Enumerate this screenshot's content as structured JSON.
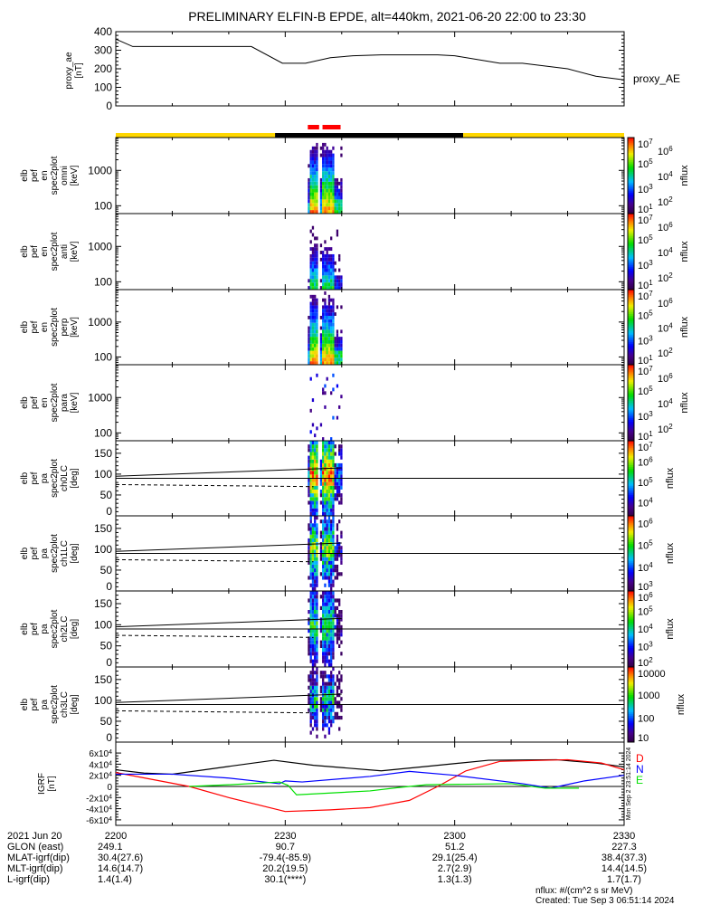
{
  "title": "PRELIMINARY ELFIN-B EPDE, alt=440km, 2021-06-20 22:00 to 23:30",
  "chart_data": [
    {
      "type": "line",
      "name": "proxy_ae",
      "ylabel": [
        "proxy_ae",
        "[nT]"
      ],
      "legend": "proxy_AE",
      "ylim": [
        0,
        400
      ],
      "yticks": [
        "0",
        "100",
        "200",
        "300",
        "400"
      ],
      "ytick_values": [
        0,
        100,
        200,
        300,
        400
      ],
      "x_minutes": [
        0,
        3,
        24,
        29.5,
        33.6,
        38,
        42,
        47,
        57,
        60,
        64,
        68,
        72,
        80,
        85,
        90
      ],
      "values": [
        360,
        320,
        320,
        230,
        230,
        260,
        270,
        275,
        275,
        270,
        250,
        230,
        230,
        200,
        160,
        140
      ]
    },
    {
      "type": "bar",
      "name": "status-bars",
      "red_segments_minutes": [
        [
          34.0,
          36.0
        ],
        [
          36.6,
          39.8
        ]
      ],
      "shadow_segments": [
        {
          "from": 0,
          "to": 28.2,
          "color": "#ffd700"
        },
        {
          "from": 28.2,
          "to": 61.5,
          "color": "#000000"
        },
        {
          "from": 61.5,
          "to": 90,
          "color": "#ffd700"
        }
      ]
    },
    {
      "type": "heatmap",
      "panels": [
        {
          "ylabel": [
            "elb",
            "pef",
            "en",
            "spec2plot",
            "omni",
            "[keV]"
          ],
          "yscale": "log",
          "ylim": [
            60,
            8500
          ],
          "yticks": [
            "100",
            "1000"
          ],
          "ytick_values": [
            100,
            1000
          ],
          "zlabel": "nflux",
          "zlim_log": [
            1,
            7
          ],
          "zticks": [
            {
              "b": "10",
              "e": "7"
            },
            {
              "b": "10",
              "e": "6"
            },
            {
              "b": "10",
              "e": "5"
            },
            {
              "b": "10",
              "e": "4"
            },
            {
              "b": "10",
              "e": "3"
            },
            {
              "b": "10",
              "e": "2"
            },
            {
              "b": "10",
              "e": "1"
            }
          ],
          "ztick_values": [
            7,
            6,
            5,
            4,
            3,
            2,
            1
          ],
          "kind": "energy",
          "strength": 6.2
        },
        {
          "ylabel": [
            "elb",
            "pef",
            "en",
            "spec2plot",
            "anti",
            "[keV]"
          ],
          "yscale": "log",
          "ylim": [
            60,
            8500
          ],
          "yticks": [
            "100",
            "1000"
          ],
          "ytick_values": [
            100,
            1000
          ],
          "zlabel": "nflux",
          "zlim_log": [
            1,
            7
          ],
          "zticks": [
            {
              "b": "10",
              "e": "7"
            },
            {
              "b": "10",
              "e": "6"
            },
            {
              "b": "10",
              "e": "5"
            },
            {
              "b": "10",
              "e": "4"
            },
            {
              "b": "10",
              "e": "3"
            },
            {
              "b": "10",
              "e": "2"
            },
            {
              "b": "10",
              "e": "1"
            }
          ],
          "ztick_values": [
            7,
            6,
            5,
            4,
            3,
            2,
            1
          ],
          "kind": "energy",
          "strength": 4.3
        },
        {
          "ylabel": [
            "elb",
            "pef",
            "en",
            "spec2plot",
            "perp",
            "[keV]"
          ],
          "yscale": "log",
          "ylim": [
            60,
            8500
          ],
          "yticks": [
            "100",
            "1000"
          ],
          "ytick_values": [
            100,
            1000
          ],
          "zlabel": "nflux",
          "zlim_log": [
            1,
            7
          ],
          "zticks": [
            {
              "b": "10",
              "e": "7"
            },
            {
              "b": "10",
              "e": "6"
            },
            {
              "b": "10",
              "e": "5"
            },
            {
              "b": "10",
              "e": "4"
            },
            {
              "b": "10",
              "e": "3"
            },
            {
              "b": "10",
              "e": "2"
            },
            {
              "b": "10",
              "e": "1"
            }
          ],
          "ztick_values": [
            7,
            6,
            5,
            4,
            3,
            2,
            1
          ],
          "kind": "energy",
          "strength": 6.2
        },
        {
          "ylabel": [
            "elb",
            "pef",
            "en",
            "spec2plot",
            "para",
            "[keV]"
          ],
          "yscale": "log",
          "ylim": [
            60,
            8500
          ],
          "yticks": [
            "100",
            "1000"
          ],
          "ytick_values": [
            100,
            1000
          ],
          "zlabel": "nflux",
          "zlim_log": [
            1,
            7
          ],
          "zticks": [
            {
              "b": "10",
              "e": "7"
            },
            {
              "b": "10",
              "e": "6"
            },
            {
              "b": "10",
              "e": "5"
            },
            {
              "b": "10",
              "e": "4"
            },
            {
              "b": "10",
              "e": "3"
            },
            {
              "b": "10",
              "e": "2"
            },
            {
              "b": "10",
              "e": "1"
            }
          ],
          "ztick_values": [
            7,
            6,
            5,
            4,
            3,
            2,
            1
          ],
          "kind": "energy",
          "strength": 0.5
        },
        {
          "ylabel": [
            "elb",
            "pef",
            "pa",
            "spec2plot",
            "ch0LC",
            "[deg]"
          ],
          "yscale": "linear",
          "ylim": [
            0,
            180
          ],
          "yticks": [
            "0",
            "50",
            "100",
            "150"
          ],
          "ytick_values": [
            0,
            50,
            100,
            150
          ],
          "zlabel": "nflux",
          "zlim_log": [
            3.3,
            7
          ],
          "zticks": [
            {
              "b": "10",
              "e": "7"
            },
            {
              "b": "10",
              "e": "6"
            },
            {
              "b": "10",
              "e": "5"
            },
            {
              "b": "10",
              "e": "4"
            }
          ],
          "ztick_values": [
            7,
            6,
            5,
            4
          ],
          "kind": "pa",
          "strength": 6.5
        },
        {
          "ylabel": [
            "elb",
            "pef",
            "pa",
            "spec2plot",
            "ch1LC",
            "[deg]"
          ],
          "yscale": "linear",
          "ylim": [
            0,
            180
          ],
          "yticks": [
            "0",
            "50",
            "100",
            "150"
          ],
          "ytick_values": [
            0,
            50,
            100,
            150
          ],
          "zlabel": "nflux",
          "zlim_log": [
            2.9,
            6.3
          ],
          "zticks": [
            {
              "b": "10",
              "e": "6"
            },
            {
              "b": "10",
              "e": "5"
            },
            {
              "b": "10",
              "e": "4"
            },
            {
              "b": "10",
              "e": "3"
            }
          ],
          "ztick_values": [
            6,
            5,
            4,
            3
          ],
          "kind": "pa",
          "strength": 5.2
        },
        {
          "ylabel": [
            "elb",
            "pef",
            "pa",
            "spec2plot",
            "ch2LC",
            "[deg]"
          ],
          "yscale": "linear",
          "ylim": [
            0,
            180
          ],
          "yticks": [
            "0",
            "50",
            "100",
            "150"
          ],
          "ytick_values": [
            0,
            50,
            100,
            150
          ],
          "zlabel": "nflux",
          "zlim_log": [
            1.8,
            6.1
          ],
          "zticks": [
            {
              "b": "10",
              "e": "6"
            },
            {
              "b": "10",
              "e": "5"
            },
            {
              "b": "10",
              "e": "4"
            },
            {
              "b": "10",
              "e": "3"
            },
            {
              "b": "10",
              "e": "2"
            }
          ],
          "ztick_values": [
            6,
            5,
            4,
            3,
            2
          ],
          "kind": "pa",
          "strength": 4.3
        },
        {
          "ylabel": [
            "elb",
            "pef",
            "pa",
            "spec2plot",
            "ch3LC",
            "[deg]"
          ],
          "yscale": "linear",
          "ylim": [
            0,
            180
          ],
          "yticks": [
            "0",
            "50",
            "100",
            "150"
          ],
          "ytick_values": [
            0,
            50,
            100,
            150
          ],
          "zlabel": "nflux",
          "zlim_log": [
            0.9,
            4.2
          ],
          "zticks": [
            {
              "b": "",
              "e": "",
              "t": "10000"
            },
            {
              "b": "",
              "e": "",
              "t": "1000"
            },
            {
              "b": "",
              "e": "",
              "t": "100"
            },
            {
              "b": "",
              "e": "",
              "t": "10"
            }
          ],
          "ztick_values": [
            4,
            3,
            2,
            1
          ],
          "kind": "pa",
          "strength": 2.6
        }
      ],
      "active_interval_minutes": [
        34.0,
        40.0
      ],
      "gap_minute": 35.9,
      "pa_lines": {
        "solid_minutes": [
          0,
          40
        ],
        "solid_deg": [
          95,
          115
        ],
        "dashed_minutes": [
          0,
          35
        ],
        "dashed_deg": [
          75,
          70
        ],
        "reference_deg": 90
      }
    },
    {
      "type": "line",
      "name": "IGRF",
      "ylabel": [
        "IGRF",
        "[nT]"
      ],
      "ylim": [
        -65000,
        65000
      ],
      "yticks": [
        {
          "b": "6x10",
          "e": "4",
          "v": 60000
        },
        {
          "b": "4x10",
          "e": "4",
          "v": 40000
        },
        {
          "b": "2x10",
          "e": "4",
          "v": 20000
        },
        {
          "b": "0",
          "e": "",
          "v": 0
        },
        {
          "b": "-2x10",
          "e": "4",
          "v": -20000
        },
        {
          "b": "-4x10",
          "e": "4",
          "v": -40000
        },
        {
          "b": "-6x10",
          "e": "4",
          "v": -60000
        }
      ],
      "legend": [
        {
          "label": "D",
          "color": "#ff0000"
        },
        {
          "label": "N",
          "color": "#0000ff"
        },
        {
          "label": "E",
          "color": "#00e000"
        }
      ],
      "side_note": "Mon Sep  2 23:51:14 2024",
      "series": [
        {
          "name": "total",
          "color": "#000000",
          "x": [
            0,
            5,
            10,
            20,
            28,
            35,
            47,
            55,
            66,
            78,
            85,
            90
          ],
          "values": [
            30000,
            24000,
            22000,
            36000,
            47000,
            38000,
            28000,
            36000,
            47000,
            48000,
            42000,
            35000
          ]
        },
        {
          "name": "D",
          "color": "#ff0000",
          "x": [
            0,
            13,
            20,
            30,
            38,
            45,
            52,
            57,
            62,
            68,
            80,
            86,
            90
          ],
          "values": [
            25000,
            0,
            -20000,
            -45000,
            -42000,
            -38000,
            -25000,
            0,
            28000,
            45000,
            48000,
            42000,
            30000
          ]
        },
        {
          "name": "N",
          "color": "#0000ff",
          "x": [
            0,
            10,
            20,
            29,
            30,
            33,
            45,
            52,
            60,
            72,
            77,
            83,
            90
          ],
          "values": [
            22000,
            22000,
            15000,
            5000,
            10000,
            8000,
            18000,
            27000,
            20000,
            5000,
            -3000,
            10000,
            20000
          ]
        },
        {
          "name": "E",
          "color": "#00e000",
          "x": [
            13,
            20,
            29,
            30.5,
            32,
            45,
            50,
            55,
            70,
            76,
            82
          ],
          "values": [
            0,
            3000,
            8000,
            2000,
            -15000,
            -8000,
            -2000,
            3000,
            5000,
            -3000,
            -3000
          ]
        }
      ]
    }
  ],
  "x_axis": {
    "row_labels": [
      "2021 Jun 20",
      "GLON (east)",
      "MLAT-igrf(dip)",
      "MLT-igrf(dip)",
      "L-igrf(dip)"
    ],
    "columns": [
      {
        "minute": 0,
        "values": [
          "2200",
          "249.1",
          "30.4(27.6)",
          "14.6(14.7)",
          "1.4(1.4)"
        ]
      },
      {
        "minute": 30,
        "values": [
          "2230",
          "90.7",
          "-79.4(-85.9)",
          "20.2(19.5)",
          "30.1(****)"
        ]
      },
      {
        "minute": 60,
        "values": [
          "2300",
          "51.2",
          "29.1(25.4)",
          "2.7(2.9)",
          "1.3(1.3)"
        ]
      },
      {
        "minute": 90,
        "values": [
          "2330",
          "227.3",
          "38.4(37.3)",
          "14.4(14.5)",
          "1.7(1.7)"
        ]
      }
    ]
  },
  "footer": {
    "units": "nflux: #/(cm^2 s sr MeV)",
    "created": "Created: Tue Sep  3 06:51:14 2024"
  }
}
